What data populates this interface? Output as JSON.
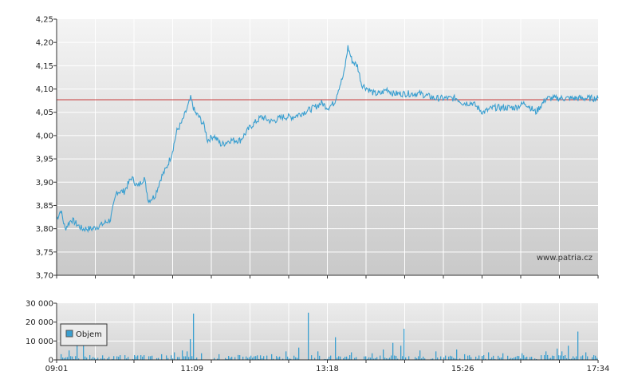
{
  "watermark": "www.patria.cz",
  "colors": {
    "price_line": "#3a9fd0",
    "reference_line": "#c83c3c",
    "volume_bar": "#3a9fd0",
    "plot_bg_top": "#f4f4f4",
    "plot_bg_bottom": "#c9c9c9",
    "grid": "#ffffff",
    "axis": "#333333"
  },
  "chart_data": [
    {
      "type": "line",
      "name": "price",
      "ylim": [
        3.7,
        4.25
      ],
      "y_ticks": [
        "3,70",
        "3,75",
        "3,80",
        "3,85",
        "3,90",
        "3,95",
        "4,00",
        "4,05",
        "4,10",
        "4,15",
        "4,20",
        "4,25"
      ],
      "grid": true,
      "reference_value": 4.077,
      "x_time_range": [
        "09:01",
        "17:34"
      ],
      "anchors": [
        [
          "09:01",
          3.82
        ],
        [
          "09:05",
          3.84
        ],
        [
          "09:09",
          3.8
        ],
        [
          "09:15",
          3.82
        ],
        [
          "09:25",
          3.8
        ],
        [
          "09:35",
          3.8
        ],
        [
          "09:45",
          3.81
        ],
        [
          "09:52",
          3.82
        ],
        [
          "09:58",
          3.88
        ],
        [
          "10:05",
          3.88
        ],
        [
          "10:12",
          3.91
        ],
        [
          "10:18",
          3.89
        ],
        [
          "10:24",
          3.91
        ],
        [
          "10:28",
          3.86
        ],
        [
          "10:34",
          3.87
        ],
        [
          "10:40",
          3.91
        ],
        [
          "10:45",
          3.93
        ],
        [
          "10:50",
          3.96
        ],
        [
          "10:55",
          4.01
        ],
        [
          "11:00",
          4.03
        ],
        [
          "11:05",
          4.06
        ],
        [
          "11:08",
          4.08
        ],
        [
          "11:12",
          4.05
        ],
        [
          "11:16",
          4.04
        ],
        [
          "11:21",
          4.02
        ],
        [
          "11:24",
          3.99
        ],
        [
          "11:30",
          4.0
        ],
        [
          "11:37",
          3.98
        ],
        [
          "11:45",
          3.99
        ],
        [
          "11:55",
          3.99
        ],
        [
          "12:05",
          4.02
        ],
        [
          "12:15",
          4.04
        ],
        [
          "12:25",
          4.03
        ],
        [
          "12:35",
          4.04
        ],
        [
          "12:45",
          4.04
        ],
        [
          "12:55",
          4.05
        ],
        [
          "13:05",
          4.06
        ],
        [
          "13:12",
          4.07
        ],
        [
          "13:18",
          4.06
        ],
        [
          "13:24",
          4.07
        ],
        [
          "13:28",
          4.1
        ],
        [
          "13:33",
          4.13
        ],
        [
          "13:37",
          4.19
        ],
        [
          "13:41",
          4.16
        ],
        [
          "13:46",
          4.15
        ],
        [
          "13:50",
          4.11
        ],
        [
          "13:56",
          4.1
        ],
        [
          "14:02",
          4.09
        ],
        [
          "14:08",
          4.09
        ],
        [
          "14:14",
          4.1
        ],
        [
          "14:20",
          4.09
        ],
        [
          "14:30",
          4.09
        ],
        [
          "14:45",
          4.09
        ],
        [
          "15:00",
          4.08
        ],
        [
          "15:10",
          4.08
        ],
        [
          "15:20",
          4.08
        ],
        [
          "15:26",
          4.07
        ],
        [
          "15:35",
          4.07
        ],
        [
          "15:45",
          4.05
        ],
        [
          "15:55",
          4.06
        ],
        [
          "16:05",
          4.06
        ],
        [
          "16:15",
          4.06
        ],
        [
          "16:25",
          4.07
        ],
        [
          "16:35",
          4.05
        ],
        [
          "16:45",
          4.08
        ],
        [
          "16:55",
          4.08
        ],
        [
          "17:05",
          4.08
        ],
        [
          "17:15",
          4.08
        ],
        [
          "17:25",
          4.08
        ],
        [
          "17:34",
          4.08
        ]
      ]
    },
    {
      "type": "bar",
      "name": "Objem",
      "ylim": [
        0,
        30000
      ],
      "y_ticks": [
        "0",
        "10 000",
        "20 000",
        "30 000"
      ],
      "x_ticks": [
        "09:01",
        "11:09",
        "13:18",
        "15:26",
        "17:34"
      ],
      "x_time_range": [
        "09:01",
        "17:34"
      ],
      "legend": {
        "label": "Objem",
        "position": "top-left"
      },
      "grid": true,
      "spikes": [
        [
          "09:05",
          3000
        ],
        [
          "09:12",
          5000
        ],
        [
          "09:20",
          9500
        ],
        [
          "09:26",
          12000
        ],
        [
          "09:32",
          2500
        ],
        [
          "09:55",
          2000
        ],
        [
          "10:20",
          2500
        ],
        [
          "10:40",
          3000
        ],
        [
          "10:52",
          4000
        ],
        [
          "11:00",
          5000
        ],
        [
          "11:05",
          4500
        ],
        [
          "11:07",
          11000
        ],
        [
          "11:11",
          24500
        ],
        [
          "11:18",
          3500
        ],
        [
          "11:35",
          3000
        ],
        [
          "11:55",
          2500
        ],
        [
          "12:10",
          2000
        ],
        [
          "12:25",
          3000
        ],
        [
          "12:38",
          4500
        ],
        [
          "12:50",
          6500
        ],
        [
          "13:00",
          25000
        ],
        [
          "13:08",
          4500
        ],
        [
          "13:25",
          12000
        ],
        [
          "13:40",
          4000
        ],
        [
          "14:00",
          3500
        ],
        [
          "14:10",
          5500
        ],
        [
          "14:20",
          9000
        ],
        [
          "14:27",
          7500
        ],
        [
          "14:30",
          16500
        ],
        [
          "14:45",
          5000
        ],
        [
          "15:00",
          4500
        ],
        [
          "15:20",
          5500
        ],
        [
          "15:28",
          3000
        ],
        [
          "15:50",
          4000
        ],
        [
          "16:03",
          3500
        ],
        [
          "16:22",
          3500
        ],
        [
          "16:45",
          4500
        ],
        [
          "16:55",
          6000
        ],
        [
          "17:00",
          4500
        ],
        [
          "17:06",
          7500
        ],
        [
          "17:14",
          15000
        ],
        [
          "17:22",
          4000
        ],
        [
          "17:30",
          2500
        ]
      ]
    }
  ]
}
